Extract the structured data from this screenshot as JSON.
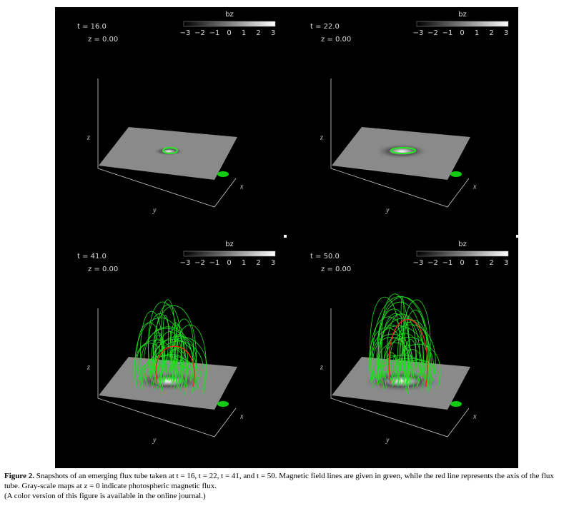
{
  "figure": {
    "panels": [
      {
        "time": "t = 16.0",
        "depth": "z = 0.00"
      },
      {
        "time": "t = 22.0",
        "depth": "z = 0.00"
      },
      {
        "time": "t = 41.0",
        "depth": "z = 0.00"
      },
      {
        "time": "t = 50.0",
        "depth": "z = 0.00"
      }
    ],
    "colorbar": {
      "label": "bz",
      "ticks": [
        "−3",
        "−2",
        "−1",
        "0",
        "1",
        "2",
        "3"
      ]
    },
    "axes": {
      "z": "z",
      "y": "y",
      "x": "x"
    }
  },
  "caption": {
    "label": "Figure 2.",
    "text": "Snapshots of an emerging flux tube taken at t = 16, t = 22, t = 41, and t = 50. Magnetic field lines are given in green, while the red line represents the axis of the flux tube. Gray-scale maps at z = 0 indicate photospheric magnetic flux.",
    "note": "(A color version of this figure is available in the online journal.)"
  }
}
